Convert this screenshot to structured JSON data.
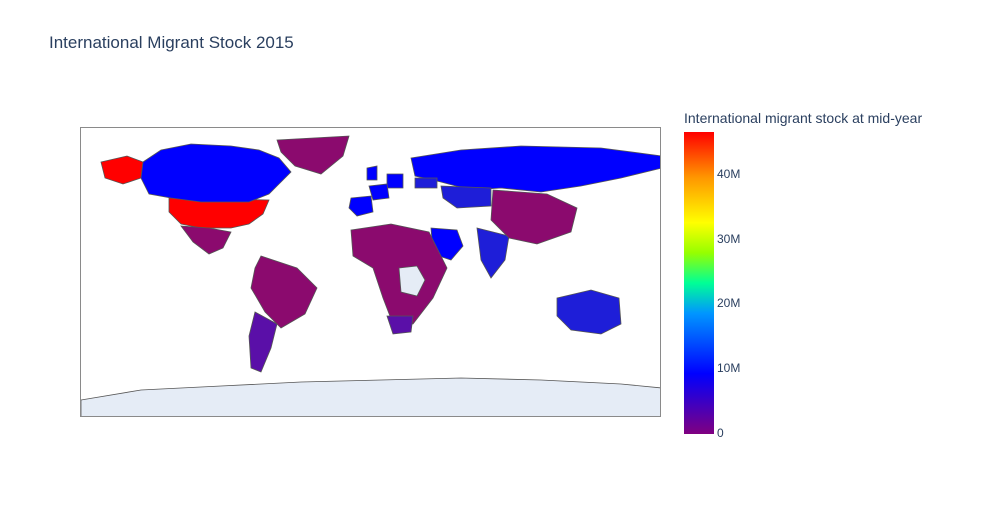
{
  "title": "International Migrant Stock 2015",
  "colorbar": {
    "title": "International migrant stock at mid-year",
    "ticks": [
      "0",
      "10M",
      "20M",
      "30M",
      "40M"
    ],
    "colorscale": [
      "#800080",
      "#0000ff",
      "#0096ff",
      "#00ff96",
      "#96ff00",
      "#ffff00",
      "#ff9600",
      "#ff0000"
    ]
  },
  "colors": {
    "low": "#8b0a6e",
    "low_mid": "#5a0fa8",
    "mid": "#1e1ed8",
    "high": "#0000ff",
    "max": "#ff0000",
    "no_data": "#e5ecf6",
    "border": "#555555"
  },
  "map_data": {
    "type": "choropleth",
    "projection": "equirectangular",
    "regions": [
      {
        "name": "United States",
        "level": "max"
      },
      {
        "name": "Alaska",
        "level": "max"
      },
      {
        "name": "Canada",
        "level": "high"
      },
      {
        "name": "Russia",
        "level": "high"
      },
      {
        "name": "Greenland",
        "level": "low"
      },
      {
        "name": "Saudi Arabia",
        "level": "high"
      },
      {
        "name": "Germany",
        "level": "high"
      },
      {
        "name": "France",
        "level": "high"
      },
      {
        "name": "Spain",
        "level": "high"
      },
      {
        "name": "United Kingdom",
        "level": "high"
      },
      {
        "name": "India",
        "level": "mid"
      },
      {
        "name": "Australia",
        "level": "mid"
      },
      {
        "name": "Kazakhstan",
        "level": "mid"
      },
      {
        "name": "Ukraine",
        "level": "mid"
      },
      {
        "name": "Mexico",
        "level": "low"
      },
      {
        "name": "Brazil",
        "level": "low"
      },
      {
        "name": "Argentina",
        "level": "low_mid"
      },
      {
        "name": "China",
        "level": "low"
      },
      {
        "name": "Africa",
        "level": "low"
      },
      {
        "name": "South Africa",
        "level": "low_mid"
      },
      {
        "name": "Democratic Republic of the Congo",
        "level": "no_data"
      },
      {
        "name": "Antarctica",
        "level": "no_data"
      }
    ]
  }
}
